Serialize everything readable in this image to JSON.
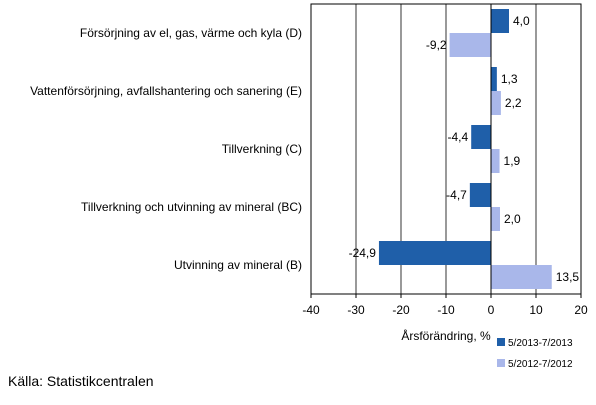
{
  "chart_data": {
    "type": "bar",
    "orientation": "horizontal",
    "categories": [
      "Försörjning av el, gas, värme och kyla (D)",
      "Vattenförsörjning, avfallshantering och sanering (E)",
      "Tillverkning (C)",
      "Tillverkning och utvinning av mineral (BC)",
      "Utvinning av mineral  (B)"
    ],
    "series": [
      {
        "name": "5/2013-7/2013",
        "color": "#1f5fa9",
        "values": [
          4.0,
          1.3,
          -4.4,
          -4.7,
          -24.9
        ],
        "labels": [
          "4,0",
          "1,3",
          "-4,4",
          "-4,7",
          "-24,9"
        ]
      },
      {
        "name": "5/2012-7/2012",
        "color": "#a9b7ea",
        "values": [
          -9.2,
          2.2,
          1.9,
          2.0,
          13.5
        ],
        "labels": [
          "-9,2",
          "2,2",
          "1,9",
          "2,0",
          "13,5"
        ]
      }
    ],
    "xlim": [
      -40,
      20
    ],
    "xticks": [
      -40,
      -30,
      -20,
      -10,
      0,
      10,
      20
    ],
    "xtick_labels": [
      "-40",
      "-30",
      "-20",
      "-10",
      "0",
      "10",
      "20"
    ],
    "xlabel": "Årsförändring, %",
    "grid": true,
    "legend_position": "bottom-right"
  },
  "source": "Källa: Statistikcentralen"
}
